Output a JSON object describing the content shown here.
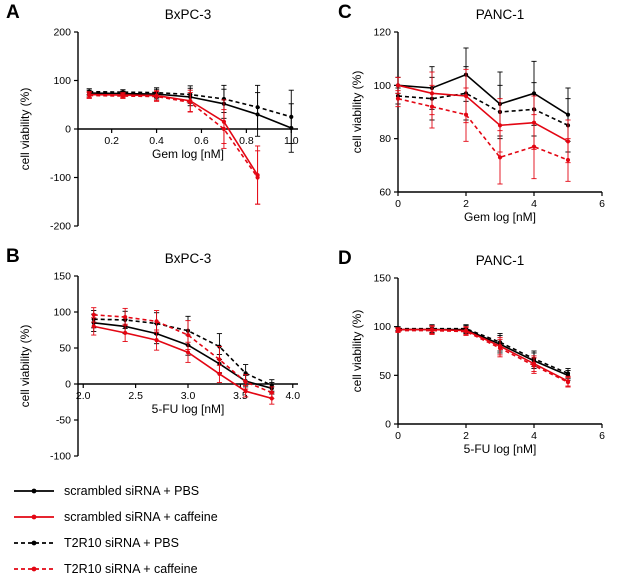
{
  "figure": {
    "background": "#ffffff",
    "accent_red": "#e30613",
    "accent_black": "#000000",
    "legend": [
      {
        "label": "scrambled siRNA + PBS",
        "color": "#000000",
        "dash": "solid"
      },
      {
        "label": "scrambled siRNA + caffeine",
        "color": "#e30613",
        "dash": "solid"
      },
      {
        "label": "T2R10 siRNA + PBS",
        "color": "#000000",
        "dash": "dashed"
      },
      {
        "label": "T2R10 siRNA + caffeine",
        "color": "#e30613",
        "dash": "dashed"
      }
    ]
  },
  "chart_data": [
    {
      "id": "A",
      "panel_label": "A",
      "type": "line",
      "title": "BxPC-3",
      "xlabel": "Gem log [nM]",
      "ylabel": "cell viability (%)",
      "xlim": [
        0.05,
        1.03
      ],
      "ylim": [
        -200,
        200
      ],
      "xticks": [
        0.2,
        0.4,
        0.6,
        0.8,
        1.0
      ],
      "yticks": [
        -200,
        -100,
        0,
        100,
        200
      ],
      "x_axis_at": 0,
      "grid": false,
      "series": [
        {
          "name": "scrambled siRNA + PBS",
          "color": "#000000",
          "dash": "solid",
          "x": [
            0.1,
            0.25,
            0.4,
            0.55,
            0.7,
            0.85,
            1.0
          ],
          "y": [
            74,
            73,
            72,
            66,
            52,
            30,
            2
          ],
          "err": [
            6,
            5,
            10,
            18,
            30,
            45,
            50
          ]
        },
        {
          "name": "T2R10 siRNA + PBS",
          "color": "#000000",
          "dash": "dashed",
          "x": [
            0.1,
            0.25,
            0.4,
            0.55,
            0.7,
            0.85,
            1.0
          ],
          "y": [
            77,
            76,
            75,
            71,
            62,
            45,
            25
          ],
          "err": [
            6,
            5,
            10,
            18,
            28,
            45,
            55
          ]
        },
        {
          "name": "scrambled siRNA + caffeine",
          "color": "#e30613",
          "dash": "solid",
          "x": [
            0.1,
            0.25,
            0.4,
            0.55,
            0.7,
            0.85
          ],
          "y": [
            71,
            70,
            69,
            58,
            15,
            -95
          ],
          "err": [
            6,
            5,
            10,
            22,
            45,
            60
          ]
        },
        {
          "name": "T2R10 siRNA + caffeine",
          "color": "#e30613",
          "dash": "dashed",
          "x": [
            0.1,
            0.25,
            0.4,
            0.55,
            0.7,
            0.85
          ],
          "y": [
            69,
            68,
            67,
            55,
            0,
            -100
          ],
          "err": [
            6,
            5,
            10,
            20,
            40,
            55
          ]
        }
      ]
    },
    {
      "id": "B",
      "panel_label": "B",
      "type": "line",
      "title": "BxPC-3",
      "xlabel": "5-FU log [nM]",
      "ylabel": "cell viability (%)",
      "xlim": [
        1.95,
        4.05
      ],
      "ylim": [
        -100,
        150
      ],
      "xticks": [
        2.0,
        2.5,
        3.0,
        3.5,
        4.0
      ],
      "yticks": [
        -100,
        -50,
        0,
        50,
        100,
        150
      ],
      "x_axis_at": 0,
      "grid": false,
      "series": [
        {
          "name": "scrambled siRNA + PBS",
          "color": "#000000",
          "dash": "solid",
          "x": [
            2.1,
            2.4,
            2.7,
            3.0,
            3.3,
            3.55,
            3.8
          ],
          "y": [
            85,
            80,
            70,
            54,
            28,
            4,
            -6
          ],
          "err": [
            12,
            10,
            14,
            14,
            13,
            8,
            8
          ]
        },
        {
          "name": "T2R10 siRNA + PBS",
          "color": "#000000",
          "dash": "dashed",
          "x": [
            2.1,
            2.4,
            2.7,
            3.0,
            3.3,
            3.55,
            3.8
          ],
          "y": [
            90,
            89,
            84,
            74,
            52,
            15,
            -2
          ],
          "err": [
            12,
            12,
            15,
            20,
            18,
            12,
            8
          ]
        },
        {
          "name": "scrambled siRNA + caffeine",
          "color": "#e30613",
          "dash": "solid",
          "x": [
            2.1,
            2.4,
            2.7,
            3.0,
            3.3,
            3.55,
            3.8
          ],
          "y": [
            80,
            71,
            61,
            44,
            14,
            -10,
            -20
          ],
          "err": [
            12,
            12,
            14,
            14,
            12,
            8,
            8
          ]
        },
        {
          "name": "T2R10 siRNA + caffeine",
          "color": "#e30613",
          "dash": "dashed",
          "x": [
            2.1,
            2.4,
            2.7,
            3.0,
            3.3,
            3.55,
            3.8
          ],
          "y": [
            96,
            93,
            87,
            68,
            34,
            3,
            -12
          ],
          "err": [
            10,
            12,
            15,
            20,
            18,
            10,
            8
          ]
        }
      ]
    },
    {
      "id": "C",
      "panel_label": "C",
      "type": "line",
      "title": "PANC-1",
      "xlabel": "Gem log [nM]",
      "ylabel": "cell viability (%)",
      "xlim": [
        0,
        6
      ],
      "ylim": [
        60,
        120
      ],
      "xticks": [
        0,
        2,
        4,
        6
      ],
      "yticks": [
        60,
        80,
        100,
        120
      ],
      "x_axis_at": 60,
      "grid": false,
      "series": [
        {
          "name": "scrambled siRNA + PBS",
          "color": "#000000",
          "dash": "solid",
          "x": [
            0,
            1,
            2,
            3,
            4,
            5
          ],
          "y": [
            100,
            99,
            104,
            93,
            97,
            89
          ],
          "err": [
            3,
            8,
            10,
            12,
            12,
            10
          ]
        },
        {
          "name": "T2R10 siRNA + PBS",
          "color": "#000000",
          "dash": "dashed",
          "x": [
            0,
            1,
            2,
            3,
            4,
            5
          ],
          "y": [
            96,
            95,
            97,
            90,
            91,
            85
          ],
          "err": [
            3,
            8,
            10,
            10,
            10,
            10
          ]
        },
        {
          "name": "scrambled siRNA + caffeine",
          "color": "#e30613",
          "dash": "solid",
          "x": [
            0,
            1,
            2,
            3,
            4,
            5
          ],
          "y": [
            100,
            97,
            96,
            85,
            86,
            79
          ],
          "err": [
            3,
            8,
            10,
            10,
            10,
            8
          ]
        },
        {
          "name": "T2R10 siRNA + caffeine",
          "color": "#e30613",
          "dash": "dashed",
          "x": [
            0,
            1,
            2,
            3,
            4,
            5
          ],
          "y": [
            95,
            92,
            89,
            73,
            77,
            72
          ],
          "err": [
            3,
            8,
            10,
            10,
            12,
            8
          ]
        }
      ]
    },
    {
      "id": "D",
      "panel_label": "D",
      "type": "line",
      "title": "PANC-1",
      "xlabel": "5-FU log [nM]",
      "ylabel": "cell viability (%)",
      "xlim": [
        0,
        6
      ],
      "ylim": [
        0,
        150
      ],
      "xticks": [
        0,
        2,
        4,
        6
      ],
      "yticks": [
        0,
        50,
        100,
        150
      ],
      "x_axis_at": 0,
      "grid": false,
      "series": [
        {
          "name": "scrambled siRNA + PBS",
          "color": "#000000",
          "dash": "solid",
          "x": [
            0,
            1,
            2,
            3,
            4,
            5
          ],
          "y": [
            97,
            97,
            97,
            82,
            65,
            50
          ],
          "err": [
            2,
            4,
            4,
            9,
            8,
            5
          ]
        },
        {
          "name": "T2R10 siRNA + PBS",
          "color": "#000000",
          "dash": "dashed",
          "x": [
            0,
            1,
            2,
            3,
            4,
            5
          ],
          "y": [
            98,
            98,
            98,
            84,
            67,
            52
          ],
          "err": [
            2,
            4,
            4,
            9,
            8,
            5
          ]
        },
        {
          "name": "scrambled siRNA + caffeine",
          "color": "#e30613",
          "dash": "solid",
          "x": [
            0,
            1,
            2,
            3,
            4,
            5
          ],
          "y": [
            97,
            97,
            96,
            80,
            62,
            44
          ],
          "err": [
            2,
            4,
            4,
            9,
            8,
            5
          ]
        },
        {
          "name": "T2R10 siRNA + caffeine",
          "color": "#e30613",
          "dash": "dashed",
          "x": [
            0,
            1,
            2,
            3,
            4,
            5
          ],
          "y": [
            96,
            96,
            95,
            78,
            60,
            43
          ],
          "err": [
            2,
            4,
            4,
            9,
            8,
            5
          ]
        }
      ]
    }
  ]
}
